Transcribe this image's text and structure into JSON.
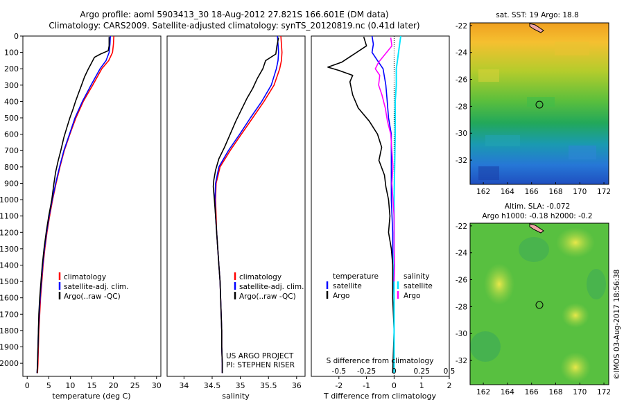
{
  "header": {
    "title_line1": "Argo profile: aoml 5903413_30 18-Aug-2012 27.821S 166.601E (DM data)",
    "title_line2": "Climatology: CARS2009. Satellite-adjusted climatology: synTS_20120819.nc (0.41d later)"
  },
  "colors": {
    "climatology": "#ff0000",
    "satellite": "#0000ff",
    "argo": "#000000",
    "sal_satellite": "#00e5ff",
    "sal_argo": "#ff00ff"
  },
  "chart_data": [
    {
      "type": "line",
      "id": "temperature",
      "xlabel": "temperature (deg C)",
      "ylabel": "",
      "xlim": [
        -1,
        31
      ],
      "ylim": [
        2080,
        0
      ],
      "xticks": [
        0,
        5,
        10,
        15,
        20,
        25,
        30
      ],
      "yticks": [
        0,
        100,
        200,
        300,
        400,
        500,
        600,
        700,
        800,
        900,
        1000,
        1100,
        1200,
        1300,
        1400,
        1500,
        1600,
        1700,
        1800,
        1900,
        2000
      ],
      "legend": [
        "climatology",
        "satellite-adj. clim.",
        "Argo(..raw -QC)"
      ],
      "series": [
        {
          "name": "climatology",
          "color": "#ff0000",
          "points": [
            [
              20.1,
              0
            ],
            [
              20.0,
              50
            ],
            [
              19.8,
              100
            ],
            [
              18.9,
              150
            ],
            [
              17.3,
              200
            ],
            [
              15.2,
              300
            ],
            [
              13.0,
              400
            ],
            [
              11.3,
              500
            ],
            [
              9.9,
              600
            ],
            [
              8.6,
              700
            ],
            [
              7.6,
              800
            ],
            [
              6.7,
              900
            ],
            [
              5.9,
              1000
            ],
            [
              5.2,
              1100
            ],
            [
              4.6,
              1200
            ],
            [
              4.1,
              1300
            ],
            [
              3.7,
              1400
            ],
            [
              3.4,
              1500
            ],
            [
              3.1,
              1600
            ],
            [
              2.9,
              1700
            ],
            [
              2.7,
              1800
            ],
            [
              2.6,
              1900
            ],
            [
              2.5,
              2000
            ],
            [
              2.4,
              2060
            ]
          ]
        },
        {
          "name": "satellite-adj. clim.",
          "color": "#0000ff",
          "points": [
            [
              19.3,
              0
            ],
            [
              19.2,
              50
            ],
            [
              19.0,
              100
            ],
            [
              18.3,
              150
            ],
            [
              16.9,
              200
            ],
            [
              14.8,
              300
            ],
            [
              12.8,
              400
            ],
            [
              11.1,
              500
            ],
            [
              9.8,
              600
            ],
            [
              8.5,
              700
            ],
            [
              7.5,
              800
            ],
            [
              6.6,
              900
            ],
            [
              5.8,
              1000
            ],
            [
              5.1,
              1100
            ],
            [
              4.5,
              1200
            ],
            [
              4.0,
              1300
            ],
            [
              3.6,
              1400
            ],
            [
              3.3,
              1500
            ],
            [
              3.0,
              1600
            ],
            [
              2.8,
              1700
            ],
            [
              2.6,
              1800
            ],
            [
              2.5,
              1900
            ],
            [
              2.4,
              2000
            ],
            [
              2.3,
              2060
            ]
          ]
        },
        {
          "name": "Argo(..raw -QC)",
          "color": "#000000",
          "points": [
            [
              19.0,
              5
            ],
            [
              19.0,
              60
            ],
            [
              18.8,
              90
            ],
            [
              17.0,
              110
            ],
            [
              15.6,
              130
            ],
            [
              14.8,
              170
            ],
            [
              14.2,
              200
            ],
            [
              13.3,
              250
            ],
            [
              12.6,
              300
            ],
            [
              11.9,
              350
            ],
            [
              11.2,
              400
            ],
            [
              10.6,
              450
            ],
            [
              9.9,
              500
            ],
            [
              9.2,
              560
            ],
            [
              8.5,
              620
            ],
            [
              7.8,
              700
            ],
            [
              7.2,
              760
            ],
            [
              6.6,
              830
            ],
            [
              6.2,
              900
            ],
            [
              5.7,
              1000
            ],
            [
              5.0,
              1100
            ],
            [
              4.4,
              1200
            ],
            [
              3.9,
              1300
            ],
            [
              3.5,
              1400
            ],
            [
              3.2,
              1500
            ],
            [
              2.9,
              1600
            ],
            [
              2.7,
              1700
            ],
            [
              2.6,
              1800
            ],
            [
              2.5,
              1900
            ],
            [
              2.4,
              2000
            ],
            [
              2.3,
              2060
            ]
          ]
        }
      ]
    },
    {
      "type": "line",
      "id": "salinity",
      "xlabel": "salinity",
      "ylabel": "",
      "xlim": [
        33.7,
        36.15
      ],
      "ylim": [
        2080,
        0
      ],
      "xticks": [
        34,
        34.5,
        35,
        35.5,
        36
      ],
      "legend": [
        "climatology",
        "satellite-adj. clim.",
        "Argo(..raw -QC)"
      ],
      "annotation": [
        "US ARGO PROJECT",
        "PI: STEPHEN RISER"
      ],
      "series": [
        {
          "name": "climatology",
          "color": "#ff0000",
          "points": [
            [
              35.72,
              0
            ],
            [
              35.73,
              50
            ],
            [
              35.74,
              100
            ],
            [
              35.73,
              150
            ],
            [
              35.7,
              200
            ],
            [
              35.6,
              300
            ],
            [
              35.42,
              400
            ],
            [
              35.22,
              500
            ],
            [
              35.02,
              600
            ],
            [
              34.82,
              700
            ],
            [
              34.64,
              800
            ],
            [
              34.57,
              900
            ],
            [
              34.56,
              1000
            ],
            [
              34.57,
              1100
            ],
            [
              34.58,
              1200
            ],
            [
              34.6,
              1300
            ],
            [
              34.62,
              1400
            ],
            [
              34.64,
              1500
            ],
            [
              34.65,
              1600
            ],
            [
              34.66,
              1700
            ],
            [
              34.67,
              1800
            ],
            [
              34.67,
              1900
            ],
            [
              34.68,
              2000
            ],
            [
              34.68,
              2060
            ]
          ]
        },
        {
          "name": "satellite-adj. clim.",
          "color": "#0000ff",
          "points": [
            [
              35.66,
              0
            ],
            [
              35.67,
              50
            ],
            [
              35.68,
              100
            ],
            [
              35.67,
              150
            ],
            [
              35.64,
              200
            ],
            [
              35.55,
              300
            ],
            [
              35.38,
              400
            ],
            [
              35.18,
              500
            ],
            [
              34.99,
              600
            ],
            [
              34.79,
              700
            ],
            [
              34.62,
              800
            ],
            [
              34.56,
              900
            ],
            [
              34.55,
              1000
            ],
            [
              34.56,
              1100
            ],
            [
              34.58,
              1200
            ],
            [
              34.6,
              1300
            ],
            [
              34.62,
              1400
            ],
            [
              34.64,
              1500
            ],
            [
              34.65,
              1600
            ],
            [
              34.66,
              1700
            ],
            [
              34.67,
              1800
            ],
            [
              34.67,
              1900
            ],
            [
              34.68,
              2000
            ],
            [
              34.68,
              2060
            ]
          ]
        },
        {
          "name": "Argo(..raw -QC)",
          "color": "#000000",
          "points": [
            [
              35.68,
              10
            ],
            [
              35.65,
              60
            ],
            [
              35.63,
              110
            ],
            [
              35.45,
              150
            ],
            [
              35.4,
              200
            ],
            [
              35.3,
              260
            ],
            [
              35.22,
              320
            ],
            [
              35.12,
              380
            ],
            [
              35.02,
              450
            ],
            [
              34.92,
              520
            ],
            [
              34.82,
              600
            ],
            [
              34.72,
              680
            ],
            [
              34.62,
              750
            ],
            [
              34.56,
              820
            ],
            [
              34.53,
              880
            ],
            [
              34.52,
              920
            ],
            [
              34.54,
              1000
            ],
            [
              34.56,
              1100
            ],
            [
              34.58,
              1200
            ],
            [
              34.6,
              1300
            ],
            [
              34.62,
              1400
            ],
            [
              34.64,
              1500
            ],
            [
              34.65,
              1600
            ],
            [
              34.66,
              1700
            ],
            [
              34.67,
              1800
            ],
            [
              34.67,
              1900
            ],
            [
              34.68,
              2000
            ],
            [
              34.68,
              2060
            ]
          ]
        }
      ]
    },
    {
      "type": "line",
      "id": "differences",
      "xlabel": "T difference from climatology",
      "xlabel_top": "S difference from climatology",
      "xlim": [
        -3.0,
        2.0
      ],
      "ylim": [
        2080,
        0
      ],
      "xticks_T": [
        -2,
        -1,
        0,
        1,
        2
      ],
      "xticks_S": [
        "-0.5",
        "-0.25",
        "0",
        "0.25",
        "0.5"
      ],
      "legend": {
        "temperature_heading": "temperature",
        "salinity_heading": "salinity",
        "entries": [
          "satellite",
          "Argo",
          "satellite",
          "Argo"
        ]
      },
      "series": [
        {
          "name": "temperature satellite",
          "color": "#0000ff",
          "points": [
            [
              -0.8,
              0
            ],
            [
              -0.75,
              50
            ],
            [
              -0.8,
              100
            ],
            [
              -0.6,
              150
            ],
            [
              -0.4,
              200
            ],
            [
              -0.35,
              250
            ],
            [
              -0.3,
              300
            ],
            [
              -0.25,
              400
            ],
            [
              -0.2,
              500
            ],
            [
              -0.1,
              600
            ],
            [
              -0.1,
              700
            ],
            [
              -0.1,
              800
            ],
            [
              -0.1,
              1000
            ],
            [
              -0.05,
              1200
            ],
            [
              -0.05,
              1400
            ],
            [
              0,
              1600
            ],
            [
              0,
              1800
            ],
            [
              0,
              2060
            ]
          ]
        },
        {
          "name": "temperature Argo",
          "color": "#000000",
          "points": [
            [
              -1.1,
              5
            ],
            [
              -1.0,
              60
            ],
            [
              -1.9,
              160
            ],
            [
              -2.4,
              190
            ],
            [
              -2.0,
              210
            ],
            [
              -1.5,
              240
            ],
            [
              -1.6,
              280
            ],
            [
              -1.5,
              360
            ],
            [
              -1.3,
              440
            ],
            [
              -0.9,
              520
            ],
            [
              -0.6,
              600
            ],
            [
              -0.45,
              680
            ],
            [
              -0.55,
              760
            ],
            [
              -0.35,
              850
            ],
            [
              -0.3,
              920
            ],
            [
              -0.2,
              1000
            ],
            [
              -0.15,
              1100
            ],
            [
              -0.2,
              1200
            ],
            [
              -0.1,
              1300
            ],
            [
              -0.05,
              1400
            ],
            [
              -0.05,
              1600
            ],
            [
              0,
              1800
            ],
            [
              -0.05,
              2060
            ]
          ]
        },
        {
          "name": "salinity satellite",
          "color": "#00e5ff",
          "points": [
            [
              0.06,
              0
            ],
            [
              0.05,
              50
            ],
            [
              0.04,
              100
            ],
            [
              0.02,
              200
            ],
            [
              0.02,
              300
            ],
            [
              0.01,
              400
            ],
            [
              0.01,
              600
            ],
            [
              0.005,
              800
            ],
            [
              0.0,
              1000
            ],
            [
              0.0,
              1400
            ],
            [
              0.0,
              2060
            ]
          ]
        },
        {
          "name": "salinity Argo",
          "color": "#ff00ff",
          "points": [
            [
              -0.03,
              10
            ],
            [
              -0.02,
              60
            ],
            [
              -0.14,
              160
            ],
            [
              -0.17,
              200
            ],
            [
              -0.13,
              240
            ],
            [
              -0.14,
              300
            ],
            [
              -0.11,
              360
            ],
            [
              -0.08,
              440
            ],
            [
              -0.06,
              520
            ],
            [
              -0.03,
              600
            ],
            [
              -0.02,
              700
            ],
            [
              -0.01,
              800
            ],
            [
              -0.02,
              900
            ],
            [
              -0.01,
              1000
            ],
            [
              0,
              1100
            ],
            [
              0,
              1300
            ],
            [
              0.005,
              1400
            ],
            [
              0,
              1500
            ]
          ]
        }
      ]
    }
  ],
  "maps": {
    "sst": {
      "title": "sat. SST: 19 Argo: 18.8",
      "xticks": [
        "162",
        "164",
        "166",
        "168",
        "170",
        "172"
      ],
      "yticks": [
        "-22",
        "-24",
        "-26",
        "-28",
        "-30",
        "-32"
      ],
      "argo_position": [
        166.6,
        -27.82
      ]
    },
    "sla": {
      "title_line1": "Altim. SLA: -0.072",
      "title_line2": "Argo h1000: -0.18 h2000: -0.2",
      "xticks": [
        "162",
        "164",
        "166",
        "168",
        "170",
        "172"
      ],
      "yticks": [
        "-22",
        "-24",
        "-26",
        "-28",
        "-30",
        "-32"
      ],
      "argo_position": [
        166.6,
        -27.82
      ]
    }
  },
  "footer": {
    "credit": "©IMOS 03-Aug-2017 18:56:38"
  }
}
